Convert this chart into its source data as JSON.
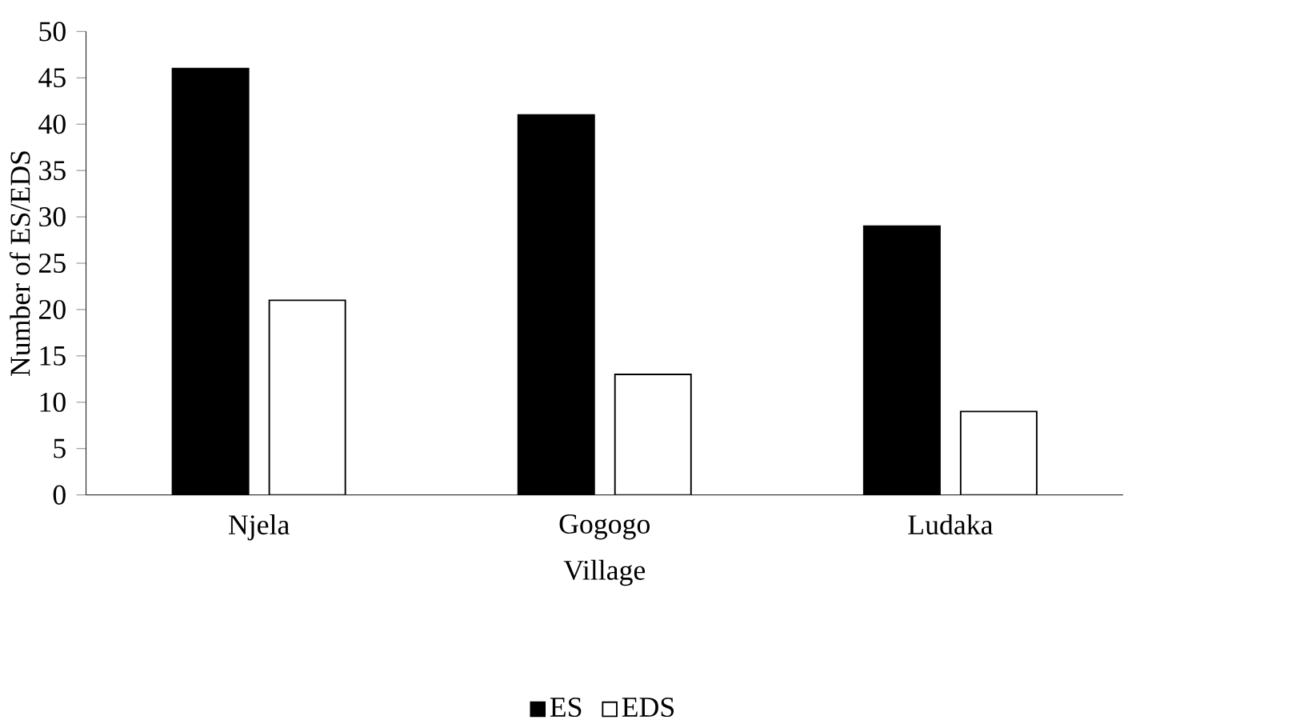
{
  "chart_data": {
    "type": "bar",
    "xlabel": "Village",
    "ylabel": "Number of ES/EDS",
    "categories": [
      "Njela",
      "Gogogo",
      "Ludaka"
    ],
    "series": [
      {
        "name": "ES",
        "color": "#000000",
        "values": [
          46,
          41,
          29
        ]
      },
      {
        "name": "EDS",
        "color": "#ffffff",
        "values": [
          21,
          13,
          9
        ]
      }
    ],
    "ylim": [
      0,
      50
    ],
    "yticks": [
      0,
      5,
      10,
      15,
      20,
      25,
      30,
      35,
      40,
      45,
      50
    ],
    "legend": "bottom"
  }
}
